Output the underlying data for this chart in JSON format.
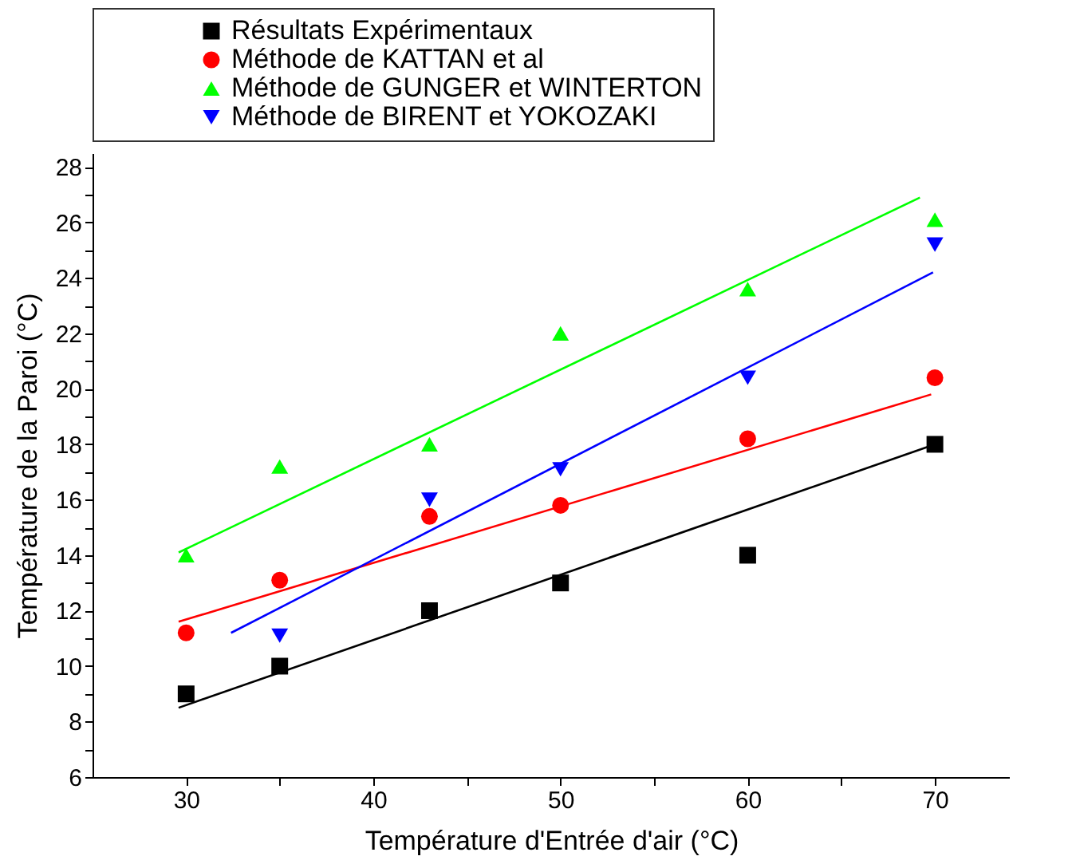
{
  "chart_data": {
    "type": "scatter",
    "xlabel": "Température d'Entrée d'air (°C)",
    "ylabel": "Température de la Paroi (°C)",
    "xlim": [
      25,
      74
    ],
    "xticks": [
      30,
      {
        "value": 35,
        "label": null
      },
      40,
      {
        "value": 45,
        "label": null
      },
      50,
      {
        "value": 55,
        "label": null
      },
      60,
      {
        "value": 65,
        "label": null
      },
      70
    ],
    "ylim": [
      6,
      28.5
    ],
    "yticks": [
      6,
      {
        "value": 7,
        "label": null
      },
      8,
      {
        "value": 9,
        "label": null
      },
      10,
      {
        "value": 11,
        "label": null
      },
      12,
      {
        "value": 13,
        "label": null
      },
      14,
      {
        "value": 15,
        "label": null
      },
      16,
      {
        "value": 17,
        "label": null
      },
      18,
      {
        "value": 19,
        "label": null
      },
      20,
      {
        "value": 21,
        "label": null
      },
      22,
      {
        "value": 23,
        "label": null
      },
      24,
      {
        "value": 25,
        "label": null
      },
      26,
      {
        "value": 27,
        "label": null
      },
      28
    ],
    "grid": false,
    "legend": "top",
    "series": [
      {
        "name": "Résultats Expérimentaux",
        "marker": "square",
        "color": "#000000",
        "x": [
          30,
          35,
          43,
          50,
          60,
          70
        ],
        "values": [
          9,
          10,
          12,
          13,
          14,
          18
        ]
      },
      {
        "name": "Méthode de KATTAN et al",
        "marker": "circle",
        "color": "#ff0000",
        "x": [
          30,
          35,
          43,
          50,
          60,
          70
        ],
        "values": [
          11.2,
          13.1,
          15.4,
          15.8,
          18.2,
          20.4
        ]
      },
      {
        "name": "Méthode de GUNGER et WINTERTON",
        "marker": "triangle",
        "color": "#00ff00",
        "x": [
          30,
          35,
          43,
          50,
          60,
          70
        ],
        "values": [
          14,
          17.2,
          18,
          22,
          23.6,
          26.1
        ]
      },
      {
        "name": "Méthode de BIRENT et YOKOZAKI",
        "marker": "triangle-down",
        "color": "#0000ff",
        "x": [
          35,
          43,
          50,
          60,
          70
        ],
        "values": [
          11.1,
          16,
          17.1,
          20.4,
          25.2
        ]
      },
      {
        "type": "line",
        "color": "#000000",
        "x": [
          29.6,
          70
        ],
        "values": [
          8.5,
          18
        ]
      },
      {
        "type": "line",
        "color": "#ff0000",
        "x": [
          29.6,
          69.8
        ],
        "values": [
          11.6,
          19.8
        ]
      },
      {
        "type": "line",
        "color": "#00ff00",
        "x": [
          29.6,
          69.2
        ],
        "values": [
          14.1,
          26.9
        ]
      },
      {
        "type": "line",
        "color": "#0000ff",
        "x": [
          32.4,
          69.9
        ],
        "values": [
          11.2,
          24.2
        ]
      }
    ]
  }
}
